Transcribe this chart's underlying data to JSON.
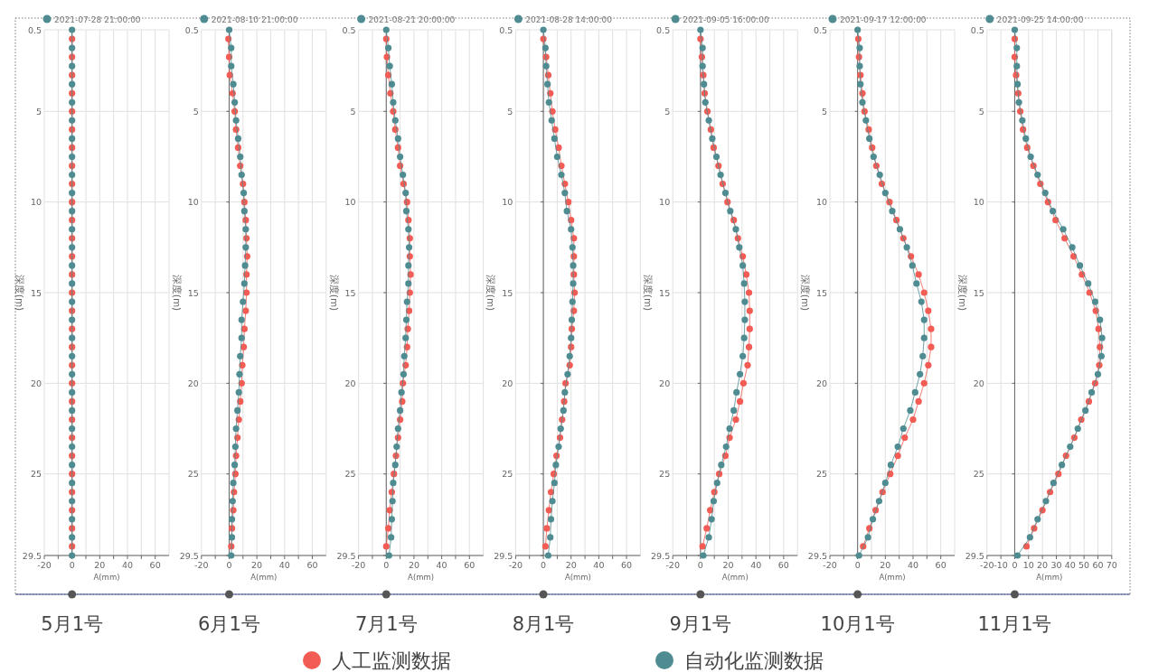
{
  "chart_data": [
    {
      "type": "line",
      "title": "2021-07-28 21:00:00",
      "xlabel": "A(mm)",
      "ylabel": "深度(m)",
      "annotations": [
        "5月1号"
      ],
      "marker": "circle",
      "grid": true,
      "xlim": [
        -20,
        70
      ],
      "xticks": [
        -20,
        {
          "value": -10,
          "label": null
        },
        0,
        {
          "value": 10,
          "label": null
        },
        20,
        {
          "value": 30,
          "label": null
        },
        40,
        {
          "value": 50,
          "label": null
        },
        60
      ],
      "ylim": [
        29.5,
        0.5
      ],
      "yticks": [
        0.5,
        5,
        10,
        15,
        20,
        25,
        29.5
      ],
      "series": [
        {
          "color": "#f25c54",
          "x": [
            0,
            0,
            0,
            0,
            0,
            0,
            0,
            0,
            0,
            0,
            0,
            0,
            0,
            0,
            0,
            0,
            0,
            0,
            0,
            0,
            0,
            0,
            0,
            0,
            0,
            0,
            0,
            0,
            0
          ],
          "values": [
            1,
            2,
            3,
            4,
            5,
            6,
            7,
            8,
            9,
            10,
            11,
            12,
            13,
            14,
            15,
            16,
            17,
            18,
            19,
            20,
            21,
            22,
            23,
            24,
            25,
            26,
            27,
            28,
            29
          ]
        },
        {
          "color": "#4e8c92",
          "x": [
            0,
            0,
            0,
            0,
            0,
            0,
            0,
            0,
            0,
            0,
            0,
            0,
            0,
            0,
            0,
            0,
            0,
            0,
            0,
            0,
            0,
            0,
            0,
            0,
            0,
            0,
            0,
            0,
            0,
            0
          ],
          "values": [
            0.5,
            1.5,
            2.5,
            3.5,
            4.5,
            5.5,
            6.5,
            7.5,
            8.5,
            9.5,
            10.5,
            11.5,
            12.5,
            13.5,
            14.5,
            15.5,
            16.5,
            17.5,
            18.5,
            19.5,
            20.5,
            21.5,
            22.5,
            23.5,
            24.5,
            25.5,
            26.5,
            27.5,
            28.5,
            29.5
          ]
        }
      ]
    },
    {
      "type": "line",
      "title": "2021-08-10 21:00:00",
      "xlabel": "A(mm)",
      "ylabel": "深度(m)",
      "annotations": [
        "6月1号"
      ],
      "marker": "circle",
      "grid": true,
      "xlim": [
        -20,
        70
      ],
      "xticks": [
        -20,
        {
          "value": -10,
          "label": null
        },
        0,
        {
          "value": 10,
          "label": null
        },
        20,
        {
          "value": 30,
          "label": null
        },
        40,
        {
          "value": 50,
          "label": null
        },
        60
      ],
      "ylim": [
        29.5,
        0.5
      ],
      "yticks": [
        0.5,
        5,
        10,
        15,
        20,
        25,
        29.5
      ],
      "series": [
        {
          "color": "#f25c54",
          "x": [
            -0.5,
            0,
            0.5,
            2.5,
            4,
            5,
            6.5,
            8,
            10,
            11,
            12,
            12.5,
            13,
            12.5,
            12.5,
            12,
            11,
            10.5,
            9.5,
            9,
            8,
            7,
            6,
            5,
            4.5,
            3.5,
            3,
            2,
            1.5
          ],
          "values": [
            1,
            2,
            3,
            4,
            5,
            6,
            7,
            8,
            9,
            10,
            11,
            12,
            13,
            14,
            15,
            16,
            17,
            18,
            19,
            20,
            21,
            22,
            23,
            24,
            25,
            26,
            27,
            28,
            29
          ]
        },
        {
          "color": "#4e8c92",
          "x": [
            0,
            1.5,
            1.5,
            3,
            4,
            5,
            6.5,
            8,
            9,
            10.5,
            11,
            12,
            12,
            11.5,
            11,
            10,
            9,
            9,
            8,
            7.5,
            7,
            6,
            5,
            4.5,
            4,
            3,
            2.5,
            2,
            2,
            1.5
          ],
          "values": [
            0.5,
            1.5,
            2.5,
            3.5,
            4.5,
            5.5,
            6.5,
            7.5,
            8.5,
            9.5,
            10.5,
            11.5,
            12.5,
            13.5,
            14.5,
            15.5,
            16.5,
            17.5,
            18.5,
            19.5,
            20.5,
            21.5,
            22.5,
            23.5,
            24.5,
            25.5,
            26.5,
            27.5,
            28.5,
            29.5
          ]
        }
      ]
    },
    {
      "type": "line",
      "title": "2021-08-21 20:00:00",
      "xlabel": "A(mm)",
      "ylabel": "深度(m)",
      "annotations": [
        "7月1号"
      ],
      "marker": "circle",
      "grid": true,
      "xlim": [
        -20,
        70
      ],
      "xticks": [
        -20,
        {
          "value": -10,
          "label": null
        },
        0,
        {
          "value": 10,
          "label": null
        },
        20,
        {
          "value": 30,
          "label": null
        },
        40,
        {
          "value": 50,
          "label": null
        },
        60
      ],
      "ylim": [
        29.5,
        0.5
      ],
      "yticks": [
        0.5,
        5,
        10,
        15,
        20,
        25,
        29.5
      ],
      "series": [
        {
          "color": "#f25c54",
          "x": [
            0,
            0.5,
            1.5,
            3,
            5,
            6.5,
            8.5,
            10,
            12.5,
            15,
            16,
            17,
            17,
            17.5,
            17,
            16.5,
            15.5,
            15,
            14,
            12,
            11.5,
            10,
            8.5,
            7,
            5.5,
            4,
            2.5,
            1.5,
            0
          ],
          "values": [
            1,
            2,
            3,
            4,
            5,
            6,
            7,
            8,
            9,
            10,
            11,
            12,
            13,
            14,
            15,
            16,
            17,
            18,
            19,
            20,
            21,
            22,
            23,
            24,
            25,
            26,
            27,
            28,
            29
          ]
        },
        {
          "color": "#4e8c92",
          "x": [
            0,
            1.5,
            2.5,
            4,
            5,
            6.5,
            8.5,
            10,
            12,
            14,
            14.5,
            16,
            16.5,
            16,
            16,
            15,
            14.5,
            14,
            13,
            12.5,
            11,
            10,
            8.5,
            7.5,
            6.5,
            5,
            4.5,
            4,
            3.5,
            2
          ],
          "values": [
            0.5,
            1.5,
            2.5,
            3.5,
            4.5,
            5.5,
            6.5,
            7.5,
            8.5,
            9.5,
            10.5,
            11.5,
            12.5,
            13.5,
            14.5,
            15.5,
            16.5,
            17.5,
            18.5,
            19.5,
            20.5,
            21.5,
            22.5,
            23.5,
            24.5,
            25.5,
            26.5,
            27.5,
            28.5,
            29.5
          ]
        }
      ]
    },
    {
      "type": "line",
      "title": "2021-08-28 14:00:00",
      "xlabel": "A(mm)",
      "ylabel": "深度(m)",
      "annotations": [
        "8月1号"
      ],
      "marker": "circle",
      "grid": true,
      "legend": "bottom",
      "xlim": [
        -20,
        70
      ],
      "xticks": [
        -20,
        {
          "value": -10,
          "label": null
        },
        0,
        {
          "value": 10,
          "label": null
        },
        20,
        {
          "value": 30,
          "label": null
        },
        40,
        {
          "value": 50,
          "label": null
        },
        60
      ],
      "ylim": [
        29.5,
        0.5
      ],
      "yticks": [
        0.5,
        5,
        10,
        15,
        20,
        25,
        29.5
      ],
      "series": [
        {
          "name": "人工监测数据",
          "color": "#f25c54",
          "x": [
            0,
            2,
            3.5,
            5,
            6.5,
            8.5,
            11,
            13,
            15.5,
            18,
            20,
            22,
            22,
            22,
            22.5,
            22,
            20.5,
            20,
            19,
            16,
            15,
            13.5,
            12,
            9.5,
            7.5,
            5.5,
            4,
            2.5,
            1.5
          ],
          "values": [
            1,
            2,
            3,
            4,
            5,
            6,
            7,
            8,
            9,
            10,
            11,
            12,
            13,
            14,
            15,
            16,
            17,
            18,
            19,
            20,
            21,
            22,
            23,
            24,
            25,
            26,
            27,
            28,
            29
          ]
        },
        {
          "name": "自动化监测数据",
          "color": "#4e8c92",
          "x": [
            0,
            1.5,
            2,
            3,
            4,
            6,
            8,
            10,
            13,
            15.5,
            17,
            20,
            21,
            21.5,
            21.5,
            21,
            20.5,
            20,
            19,
            17.5,
            15.5,
            14.5,
            12.5,
            11,
            9,
            8,
            6.5,
            5.5,
            5,
            3.5
          ],
          "values": [
            0.5,
            1.5,
            2.5,
            3.5,
            4.5,
            5.5,
            6.5,
            7.5,
            8.5,
            9.5,
            10.5,
            11.5,
            12.5,
            13.5,
            14.5,
            15.5,
            16.5,
            17.5,
            18.5,
            19.5,
            20.5,
            21.5,
            22.5,
            23.5,
            24.5,
            25.5,
            26.5,
            27.5,
            28.5,
            29.5
          ]
        }
      ]
    },
    {
      "type": "line",
      "title": "2021-09-05 16:00:00",
      "xlabel": "A(mm)",
      "ylabel": "深度(m)",
      "annotations": [
        "9月1号"
      ],
      "marker": "circle",
      "grid": true,
      "xlim": [
        -20,
        70
      ],
      "xticks": [
        -20,
        {
          "value": -10,
          "label": null
        },
        0,
        {
          "value": 10,
          "label": null
        },
        20,
        {
          "value": 30,
          "label": null
        },
        40,
        {
          "value": 50,
          "label": null
        },
        60
      ],
      "ylim": [
        29.5,
        0.5
      ],
      "yticks": [
        0.5,
        5,
        10,
        15,
        20,
        25,
        29.5
      ],
      "series": [
        {
          "color": "#f25c54",
          "x": [
            0,
            1,
            2,
            3,
            5,
            7.5,
            9.5,
            13,
            16,
            19.5,
            24,
            27,
            30.5,
            33,
            35,
            35.5,
            35.5,
            35,
            34,
            31,
            28.5,
            25.5,
            21,
            18,
            13.5,
            10,
            7,
            4.5,
            1.5
          ],
          "values": [
            1,
            2,
            3,
            4,
            5,
            6,
            7,
            8,
            9,
            10,
            11,
            12,
            13,
            14,
            15,
            16,
            17,
            18,
            19,
            20,
            21,
            22,
            23,
            24,
            25,
            26,
            27,
            28,
            29
          ]
        },
        {
          "color": "#4e8c92",
          "x": [
            0,
            1.5,
            1.5,
            2.5,
            3.5,
            6,
            8.5,
            11.5,
            14.5,
            18,
            21.5,
            25.5,
            28,
            30.5,
            31.5,
            32,
            32,
            31.5,
            30.5,
            28.5,
            26,
            24,
            21,
            18.5,
            15,
            12,
            9.5,
            8,
            6,
            2
          ],
          "values": [
            0.5,
            1.5,
            2.5,
            3.5,
            4.5,
            5.5,
            6.5,
            7.5,
            8.5,
            9.5,
            10.5,
            11.5,
            12.5,
            13.5,
            14.5,
            15.5,
            16.5,
            17.5,
            18.5,
            19.5,
            20.5,
            21.5,
            22.5,
            23.5,
            24.5,
            25.5,
            26.5,
            27.5,
            28.5,
            29.5
          ]
        }
      ]
    },
    {
      "type": "line",
      "title": "2021-09-17 12:00:00",
      "xlabel": "A(mm)",
      "ylabel": "深度(m)",
      "annotations": [
        "10月1号"
      ],
      "marker": "circle",
      "grid": true,
      "xlim": [
        -20,
        70
      ],
      "xticks": [
        -20,
        {
          "value": -10,
          "label": null
        },
        0,
        {
          "value": 10,
          "label": null
        },
        20,
        {
          "value": 30,
          "label": null
        },
        40,
        {
          "value": 50,
          "label": null
        },
        60
      ],
      "ylim": [
        29.5,
        0.5
      ],
      "yticks": [
        0.5,
        5,
        10,
        15,
        20,
        25,
        29.5
      ],
      "series": [
        {
          "color": "#f25c54",
          "x": [
            0.5,
            1,
            2,
            3.5,
            5,
            8,
            10.5,
            13.5,
            17.5,
            23,
            28,
            33,
            38.5,
            44,
            48,
            51,
            53,
            53,
            51,
            48,
            44,
            40,
            34,
            29,
            23.5,
            18,
            13,
            8.5,
            4
          ],
          "values": [
            1,
            2,
            3,
            4,
            5,
            6,
            7,
            8,
            9,
            10,
            11,
            12,
            13,
            14,
            15,
            16,
            17,
            18,
            19,
            20,
            21,
            22,
            23,
            24,
            25,
            26,
            27,
            28,
            29
          ]
        },
        {
          "color": "#4e8c92",
          "x": [
            0,
            1.5,
            1.5,
            2,
            3.5,
            6,
            8.5,
            11.5,
            16,
            20,
            25,
            30.5,
            35.5,
            39.5,
            42.5,
            46,
            48,
            48,
            47,
            45,
            41.5,
            38,
            33,
            29,
            24,
            20,
            15.5,
            11,
            7.5,
            1
          ],
          "values": [
            0.5,
            1.5,
            2.5,
            3.5,
            4.5,
            5.5,
            6.5,
            7.5,
            8.5,
            9.5,
            10.5,
            11.5,
            12.5,
            13.5,
            14.5,
            15.5,
            16.5,
            17.5,
            18.5,
            19.5,
            20.5,
            21.5,
            22.5,
            23.5,
            24.5,
            25.5,
            26.5,
            27.5,
            28.5,
            29.5
          ]
        }
      ]
    },
    {
      "type": "line",
      "title": "2021-09-25 14:00:00",
      "xlabel": "A(mm)",
      "ylabel": "深度(m)",
      "annotations": [
        "11月1号"
      ],
      "marker": "circle",
      "grid": true,
      "xlim": [
        -20,
        70
      ],
      "xticks": [
        -20,
        -10,
        0,
        10,
        20,
        30,
        40,
        50,
        60,
        70
      ],
      "ylim": [
        29.5,
        0.5
      ],
      "yticks": [
        0.5,
        5,
        10,
        15,
        20,
        25,
        29.5
      ],
      "series": [
        {
          "color": "#f25c54",
          "x": [
            0,
            0,
            1,
            2.5,
            4,
            6,
            9,
            13.5,
            18.5,
            24,
            29.5,
            36,
            42.5,
            48.5,
            54,
            58.5,
            60.5,
            61.5,
            61,
            58,
            53.5,
            48,
            43,
            37,
            31.5,
            25.5,
            20,
            14,
            8.5
          ],
          "values": [
            1,
            2,
            3,
            4,
            5,
            6,
            7,
            8,
            9,
            10,
            11,
            12,
            13,
            14,
            15,
            16,
            17,
            18,
            19,
            20,
            21,
            22,
            23,
            24,
            25,
            26,
            27,
            28,
            29
          ]
        },
        {
          "color": "#4e8c92",
          "x": [
            0,
            1.5,
            1.5,
            2,
            3,
            5.5,
            8,
            11.5,
            16.5,
            22,
            27.5,
            35,
            41.5,
            47,
            53,
            58,
            61.5,
            63,
            62.5,
            60,
            55.5,
            51,
            45.5,
            40,
            34,
            28,
            22.5,
            16.5,
            11,
            2
          ],
          "values": [
            0.5,
            1.5,
            2.5,
            3.5,
            4.5,
            5.5,
            6.5,
            7.5,
            8.5,
            9.5,
            10.5,
            11.5,
            12.5,
            13.5,
            14.5,
            15.5,
            16.5,
            17.5,
            18.5,
            19.5,
            20.5,
            21.5,
            22.5,
            23.5,
            24.5,
            25.5,
            26.5,
            27.5,
            28.5,
            29.5
          ]
        }
      ]
    }
  ]
}
